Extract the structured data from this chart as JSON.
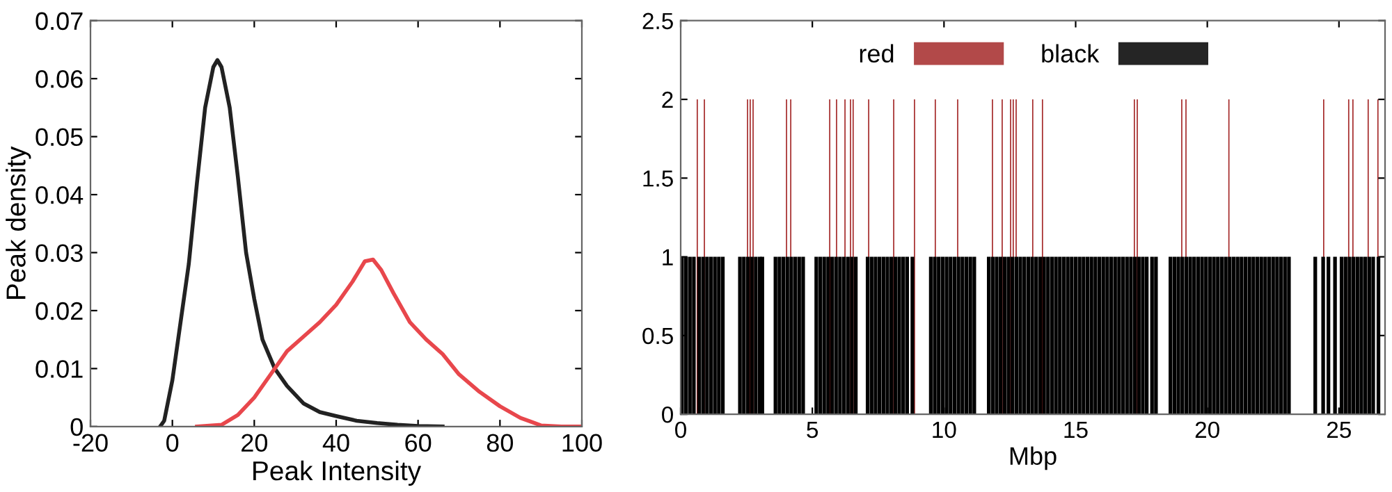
{
  "chart_data": [
    {
      "type": "line",
      "xlabel": "Peak Intensity",
      "ylabel": "Peak density",
      "xlim": [
        -20,
        100
      ],
      "ylim": [
        0,
        0.07
      ],
      "xticks": [
        -20,
        0,
        20,
        40,
        60,
        80,
        100
      ],
      "yticks": [
        0,
        0.01,
        0.02,
        0.03,
        0.04,
        0.05,
        0.06,
        0.07
      ],
      "grid": false,
      "legend": false,
      "series": [
        {
          "color": "#222222",
          "x": [
            -3,
            -2,
            0,
            2,
            4,
            6,
            8,
            10,
            11,
            12,
            14,
            16,
            18,
            20,
            22,
            25,
            28,
            32,
            36,
            40,
            45,
            50,
            55,
            60,
            66
          ],
          "values": [
            0,
            0.001,
            0.008,
            0.018,
            0.028,
            0.042,
            0.055,
            0.062,
            0.0632,
            0.062,
            0.055,
            0.043,
            0.03,
            0.022,
            0.015,
            0.01,
            0.007,
            0.004,
            0.0025,
            0.0018,
            0.001,
            0.0006,
            0.0003,
            0.0001,
            0
          ]
        },
        {
          "color": "#e8474c",
          "x": [
            6,
            12,
            16,
            20,
            24,
            28,
            32,
            36,
            40,
            44,
            47,
            49,
            51,
            54,
            58,
            62,
            66,
            70,
            75,
            80,
            85,
            90,
            95,
            100
          ],
          "values": [
            0,
            0.0003,
            0.002,
            0.005,
            0.009,
            0.013,
            0.0155,
            0.018,
            0.021,
            0.025,
            0.0285,
            0.0288,
            0.027,
            0.023,
            0.018,
            0.015,
            0.0125,
            0.009,
            0.006,
            0.0035,
            0.0015,
            0.0002,
            0,
            0
          ]
        }
      ]
    },
    {
      "type": "bar",
      "xlabel": "Mbp",
      "xlim": [
        0,
        26.75
      ],
      "ylim": [
        0,
        2.5
      ],
      "xticks": [
        0,
        5,
        10,
        15,
        20,
        25
      ],
      "yticks": [
        0,
        0.5,
        1,
        1.5,
        2,
        2.5
      ],
      "grid": false,
      "legend": "top",
      "series": [
        {
          "name": "red",
          "color": "#a52a2a",
          "x": [
            0.63,
            0.9,
            2.54,
            2.64,
            2.75,
            4.02,
            4.18,
            5.66,
            5.92,
            6.24,
            6.45,
            6.55,
            7.14,
            8.09,
            8.88,
            9.67,
            10.52,
            11.84,
            12.21,
            12.53,
            12.63,
            12.74,
            13.37,
            13.74,
            17.23,
            17.34,
            19.03,
            19.19,
            20.82,
            24.42,
            25.37,
            25.53,
            26.11,
            26.48
          ],
          "values": [
            2,
            2,
            2,
            2,
            2,
            2,
            2,
            2,
            2,
            2,
            2,
            2,
            2,
            2,
            2,
            2,
            2,
            2,
            2,
            2,
            2,
            2,
            2,
            2,
            2,
            2,
            2,
            2,
            2,
            2,
            2,
            2,
            2,
            2
          ]
        },
        {
          "name": "black",
          "color": "#000000",
          "x": [
            0.05,
            0.2,
            0.35,
            0.5,
            0.7,
            0.85,
            1.0,
            1.15,
            1.3,
            1.45,
            1.6,
            2.25,
            2.4,
            2.55,
            2.7,
            2.85,
            3.0,
            3.1,
            3.6,
            3.75,
            3.9,
            4.05,
            4.2,
            4.35,
            4.5,
            4.65,
            5.15,
            5.3,
            5.45,
            5.6,
            5.75,
            5.9,
            6.05,
            6.2,
            6.35,
            6.5,
            6.65,
            7.1,
            7.25,
            7.4,
            7.55,
            7.7,
            7.85,
            8.0,
            8.15,
            8.3,
            8.45,
            8.6,
            8.8,
            9.5,
            9.65,
            9.8,
            9.95,
            10.1,
            10.25,
            10.4,
            10.55,
            10.7,
            10.85,
            11.0,
            11.15,
            11.7,
            11.85,
            12.0,
            12.15,
            12.3,
            12.45,
            12.6,
            12.75,
            12.9,
            13.05,
            13.2,
            13.35,
            13.5,
            13.65,
            13.8,
            13.95,
            14.1,
            14.25,
            14.4,
            14.55,
            14.7,
            14.85,
            15.0,
            15.15,
            15.3,
            15.45,
            15.6,
            15.75,
            15.9,
            16.05,
            16.2,
            16.35,
            16.5,
            16.65,
            16.8,
            16.95,
            17.1,
            17.25,
            17.4,
            17.55,
            17.7,
            17.9,
            18.05,
            18.6,
            18.75,
            18.9,
            19.05,
            19.2,
            19.35,
            19.5,
            19.65,
            19.8,
            19.95,
            20.1,
            20.25,
            20.4,
            20.55,
            20.7,
            20.85,
            21.0,
            21.15,
            21.3,
            21.45,
            21.6,
            21.75,
            21.9,
            22.05,
            22.2,
            22.35,
            22.5,
            22.65,
            22.8,
            22.95,
            23.1,
            24.1,
            24.4,
            24.6,
            24.85,
            25.1,
            25.25,
            25.4,
            25.55,
            25.7,
            25.85,
            26.0,
            26.15,
            26.3,
            26.5
          ],
          "values": [
            1,
            1,
            1,
            1,
            1,
            1,
            1,
            1,
            1,
            1,
            1,
            1,
            1,
            1,
            1,
            1,
            1,
            1,
            1,
            1,
            1,
            1,
            1,
            1,
            1,
            1,
            1,
            1,
            1,
            1,
            1,
            1,
            1,
            1,
            1,
            1,
            1,
            1,
            1,
            1,
            1,
            1,
            1,
            1,
            1,
            1,
            1,
            1,
            1,
            1,
            1,
            1,
            1,
            1,
            1,
            1,
            1,
            1,
            1,
            1,
            1,
            1,
            1,
            1,
            1,
            1,
            1,
            1,
            1,
            1,
            1,
            1,
            1,
            1,
            1,
            1,
            1,
            1,
            1,
            1,
            1,
            1,
            1,
            1,
            1,
            1,
            1,
            1,
            1,
            1,
            1,
            1,
            1,
            1,
            1,
            1,
            1,
            1,
            1,
            1,
            1,
            1,
            1,
            1,
            1,
            1,
            1,
            1,
            1,
            1,
            1,
            1,
            1,
            1,
            1,
            1,
            1,
            1,
            1,
            1,
            1,
            1,
            1,
            1,
            1,
            1,
            1,
            1,
            1,
            1,
            1,
            1,
            1,
            1,
            1,
            1,
            1,
            1,
            1,
            1,
            1,
            1,
            1,
            1,
            1,
            1,
            1,
            1,
            1
          ]
        }
      ]
    }
  ]
}
